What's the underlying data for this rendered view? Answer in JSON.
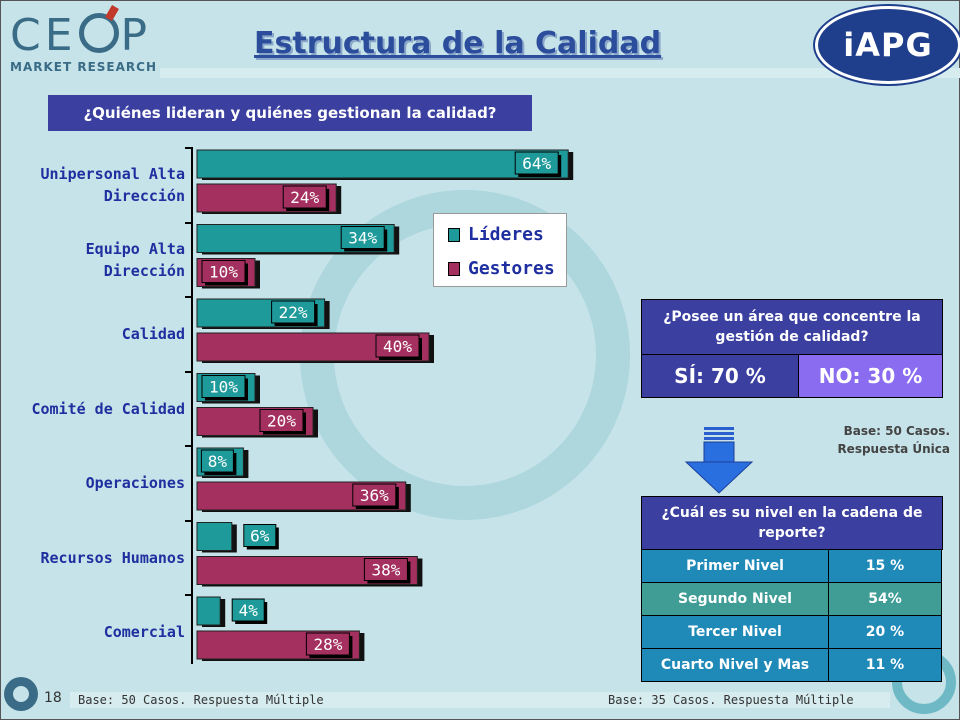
{
  "header": {
    "title": "Estructura de la Calidad"
  },
  "logo": {
    "main": "CEOP",
    "sub": "MARKET RESEARCH"
  },
  "partner_logo": {
    "text": "iAPG"
  },
  "question1": "¿Quiénes lideran y quiénes gestionan la calidad?",
  "chart_data": {
    "type": "bar",
    "orientation": "horizontal",
    "categories": [
      "Unipersonal Alta Dirección",
      "Equipo Alta Dirección",
      "Calidad",
      "Comité de Calidad",
      "Operaciones",
      "Recursos Humanos",
      "Comercial"
    ],
    "category_lines": [
      [
        "Unipersonal Alta",
        "Dirección"
      ],
      [
        "Equipo Alta",
        "Dirección"
      ],
      [
        "Calidad"
      ],
      [
        "Comité de Calidad"
      ],
      [
        "Operaciones"
      ],
      [
        "Recursos Humanos"
      ],
      [
        "Comercial"
      ]
    ],
    "series": [
      {
        "name": "Líderes",
        "values": [
          64,
          34,
          22,
          10,
          8,
          6,
          4
        ],
        "labels": [
          "64%",
          "34%",
          "22%",
          "10%",
          "8%",
          "6%",
          "4%"
        ],
        "color": "#1f9a9a"
      },
      {
        "name": "Gestores",
        "values": [
          24,
          10,
          40,
          20,
          36,
          38,
          28
        ],
        "labels": [
          "24%",
          "10%",
          "40%",
          "20%",
          "36%",
          "38%",
          "28%"
        ],
        "color": "#a3305e"
      }
    ],
    "xlim": [
      0,
      70
    ],
    "legend": "right"
  },
  "legend": {
    "lideres": "Líderes",
    "gestores": "Gestores"
  },
  "box1": {
    "question": "¿Posee un área que concentre la gestión de calidad?",
    "yes": "SÍ:  70 %",
    "no": "NO: 30 %"
  },
  "base_unica": {
    "line1": "Base: 50 Casos.",
    "line2": "Respuesta Única"
  },
  "box2": {
    "question": "¿Cuál es su nivel en la cadena de reporte?",
    "rows": [
      {
        "level": "Primer Nivel",
        "value": "15 %"
      },
      {
        "level": "Segundo Nivel",
        "value": "54%"
      },
      {
        "level": "Tercer Nivel",
        "value": "20 %"
      },
      {
        "level": "Cuarto Nivel y Mas",
        "value": "11 %"
      }
    ]
  },
  "footer": {
    "left": "Base: 50 Casos. Respuesta Múltiple",
    "right": "Base: 35 Casos. Respuesta Múltiple",
    "page": "18"
  }
}
